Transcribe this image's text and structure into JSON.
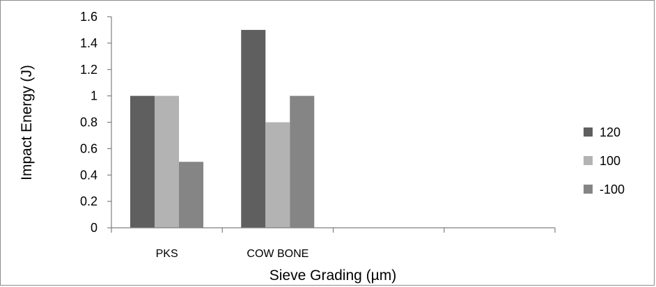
{
  "chart_data": {
    "type": "bar",
    "title": "",
    "xlabel": "Sieve Grading (µm)",
    "ylabel": "Impact Energy (J)",
    "categories": [
      "PKS",
      "COW BONE",
      "",
      ""
    ],
    "series": [
      {
        "name": "120",
        "values": [
          1.0,
          1.5,
          null,
          null
        ],
        "color": "#5f5f5f"
      },
      {
        "name": "100",
        "values": [
          1.0,
          0.8,
          null,
          null
        ],
        "color": "#b3b3b3"
      },
      {
        "name": "-100",
        "values": [
          0.5,
          1.0,
          null,
          null
        ],
        "color": "#858585"
      }
    ],
    "ylim": [
      0,
      1.6
    ],
    "yticks": [
      "0",
      "0.2",
      "0.4",
      "0.6",
      "0.8",
      "1",
      "1.2",
      "1.4",
      "1.6"
    ],
    "ytick_values": [
      0,
      0.2,
      0.4,
      0.6,
      0.8,
      1.0,
      1.2,
      1.4,
      1.6
    ],
    "grid": false,
    "legend": "right"
  }
}
